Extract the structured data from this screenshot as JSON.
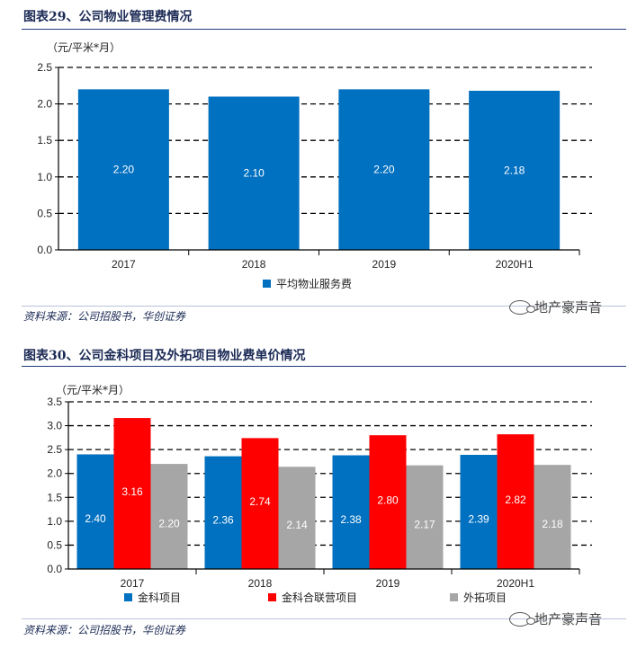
{
  "sections": [
    {
      "title": "图表29、公司物业管理费情况",
      "unit": "（元/平米*月）",
      "source": "资料来源：公司招股书，华创证券",
      "watermark": "地产豪声音"
    },
    {
      "title": "图表30、公司金科项目及外拓项目物业费单价情况",
      "unit": "（元/平米*月）",
      "source": "资料来源：公司招股书，华创证券",
      "watermark": "地产豪声音"
    }
  ],
  "colors": {
    "blue": "#0070c0",
    "red": "#ff0000",
    "gray": "#a6a6a6",
    "title": "#1b2a55"
  },
  "chart_data": [
    {
      "type": "bar",
      "categories": [
        "2017",
        "2018",
        "2019",
        "2020H1"
      ],
      "series": [
        {
          "name": "平均物业服务费",
          "values": [
            2.2,
            2.1,
            2.2,
            2.18
          ],
          "labels": [
            "2.20",
            "2.10",
            "2.20",
            "2.18"
          ],
          "color": "#0070c0"
        }
      ],
      "ylim": [
        0,
        2.5
      ],
      "yticks": [
        "0.0",
        "0.5",
        "1.0",
        "1.5",
        "2.0",
        "2.5"
      ],
      "grid": true,
      "legend": "bottom"
    },
    {
      "type": "bar",
      "categories": [
        "2017",
        "2018",
        "2019",
        "2020H1"
      ],
      "series": [
        {
          "name": "金科项目",
          "values": [
            2.4,
            2.36,
            2.38,
            2.39
          ],
          "labels": [
            "2.40",
            "2.36",
            "2.38",
            "2.39"
          ],
          "color": "#0070c0"
        },
        {
          "name": "金科合联营项目",
          "values": [
            3.16,
            2.74,
            2.8,
            2.82
          ],
          "labels": [
            "3.16",
            "2.74",
            "2.80",
            "2.82"
          ],
          "color": "#ff0000"
        },
        {
          "name": "外拓项目",
          "values": [
            2.2,
            2.14,
            2.17,
            2.18
          ],
          "labels": [
            "2.20",
            "2.14",
            "2.17",
            "2.18"
          ],
          "color": "#a6a6a6"
        }
      ],
      "ylim": [
        0,
        3.5
      ],
      "yticks": [
        "0.0",
        "0.5",
        "1.0",
        "1.5",
        "2.0",
        "2.5",
        "3.0",
        "3.5"
      ],
      "grid": true,
      "legend": "bottom"
    }
  ]
}
